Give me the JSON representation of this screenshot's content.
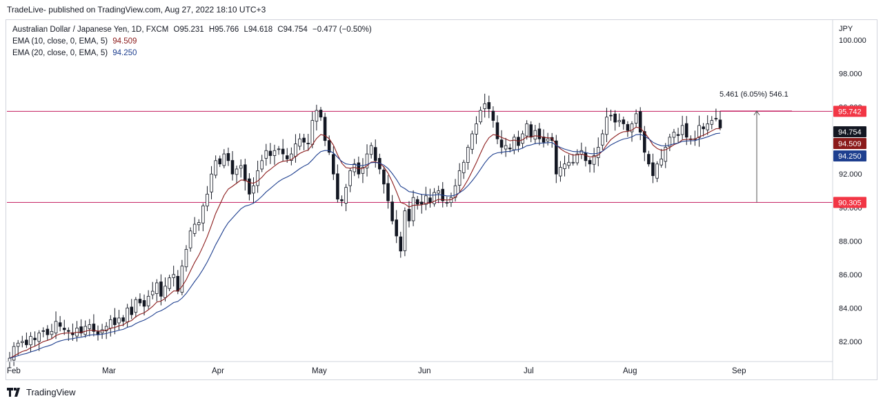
{
  "header": {
    "publisher": "TradeLive- published on TradingView.com, Aug 27, 2022 18:10 UTC+3"
  },
  "legend": {
    "symbol": "Australian Dollar / Japanese Yen, 1D, FXCM",
    "o_label": "O",
    "o": "95.231",
    "h_label": "H",
    "h": "95.766",
    "l_label": "L",
    "l": "94.618",
    "c_label": "C",
    "c": "94.754",
    "change": "−0.477 (−0.50%)",
    "ema10_label": "EMA (10, close, 0, EMA, 5)",
    "ema10_value": "94.509",
    "ema20_label": "EMA (20, close, 0, EMA, 5)",
    "ema20_value": "94.250"
  },
  "footer": {
    "brand": "TradingView"
  },
  "chart_data": {
    "type": "candlestick",
    "currency": "JPY",
    "y_ticks": [
      "82.000",
      "84.000",
      "86.000",
      "88.000",
      "90.000",
      "92.000",
      "94.000",
      "96.000",
      "98.000",
      "100.000"
    ],
    "ylim": [
      80.8,
      101.2
    ],
    "x_months": [
      "Feb",
      "Mar",
      "Apr",
      "May",
      "Jun",
      "Jul",
      "Aug",
      "Sep"
    ],
    "levels": [
      {
        "name": "resistance",
        "value": 95.742,
        "label": "95.742"
      },
      {
        "name": "support",
        "value": 90.305,
        "label": "90.305"
      }
    ],
    "price_labels": [
      {
        "name": "last",
        "value": 94.754,
        "label": "94.754",
        "color": "#131722"
      },
      {
        "name": "ema10",
        "value": 94.509,
        "label": "94.509",
        "color": "#8b1a1a"
      },
      {
        "name": "ema20",
        "value": 94.25,
        "label": "94.250",
        "color": "#1e3f8f"
      }
    ],
    "measure": {
      "text": "5.461 (6.05%) 546.1",
      "from": 90.305,
      "to": 95.766
    },
    "colors": {
      "level": "#c2185b",
      "ema10": "#8b1a1a",
      "ema20": "#1e3f8f",
      "up": "#ffffff",
      "down": "#131722"
    },
    "closes": [
      81.0,
      81.7,
      81.9,
      82.0,
      81.8,
      82.3,
      82.1,
      82.5,
      82.6,
      82.4,
      82.6,
      83.2,
      82.9,
      82.7,
      82.6,
      82.4,
      82.8,
      82.5,
      82.9,
      83.0,
      82.6,
      82.4,
      82.7,
      82.9,
      83.3,
      83.0,
      83.4,
      83.2,
      84.0,
      83.6,
      84.5,
      84.3,
      84.1,
      84.7,
      85.0,
      85.5,
      84.7,
      85.3,
      85.8,
      86.0,
      85.0,
      86.5,
      87.5,
      88.6,
      89.0,
      89.1,
      90.1,
      90.8,
      92.0,
      92.8,
      92.6,
      93.2,
      92.8,
      92.0,
      92.3,
      92.5,
      91.6,
      90.8,
      91.3,
      92.2,
      92.8,
      93.4,
      93.1,
      93.4,
      93.5,
      93.2,
      92.9,
      93.2,
      93.8,
      94.1,
      93.9,
      93.8,
      95.2,
      95.8,
      95.4,
      94.0,
      93.3,
      92.0,
      90.5,
      90.4,
      91.2,
      92.2,
      92.6,
      92.0,
      92.4,
      93.2,
      93.7,
      92.8,
      92.3,
      91.4,
      90.4,
      89.2,
      88.3,
      87.4,
      89.8,
      89.2,
      90.6,
      90.2,
      90.2,
      90.7,
      90.3,
      90.9,
      91.0,
      90.4,
      90.3,
      90.6,
      91.3,
      92.2,
      92.7,
      93.6,
      94.4,
      95.0,
      95.8,
      96.2,
      95.9,
      95.2,
      94.1,
      93.6,
      93.7,
      93.5,
      94.2,
      93.7,
      94.4,
      95.0,
      94.2,
      94.6,
      94.1,
      93.9,
      94.1,
      94.0,
      92.0,
      92.4,
      92.6,
      92.7,
      92.7,
      93.2,
      93.4,
      92.8,
      92.6,
      93.1,
      93.6,
      94.4,
      95.4,
      95.5,
      95.1,
      95.2,
      95.0,
      94.6,
      95.0,
      95.6,
      94.5,
      93.3,
      92.6,
      91.9,
      92.6,
      92.9,
      93.6,
      94.2,
      94.5,
      94.3,
      94.9,
      94.2,
      94.1,
      94.1,
      94.9,
      94.7,
      95.0,
      95.2,
      95.3,
      94.754
    ]
  }
}
